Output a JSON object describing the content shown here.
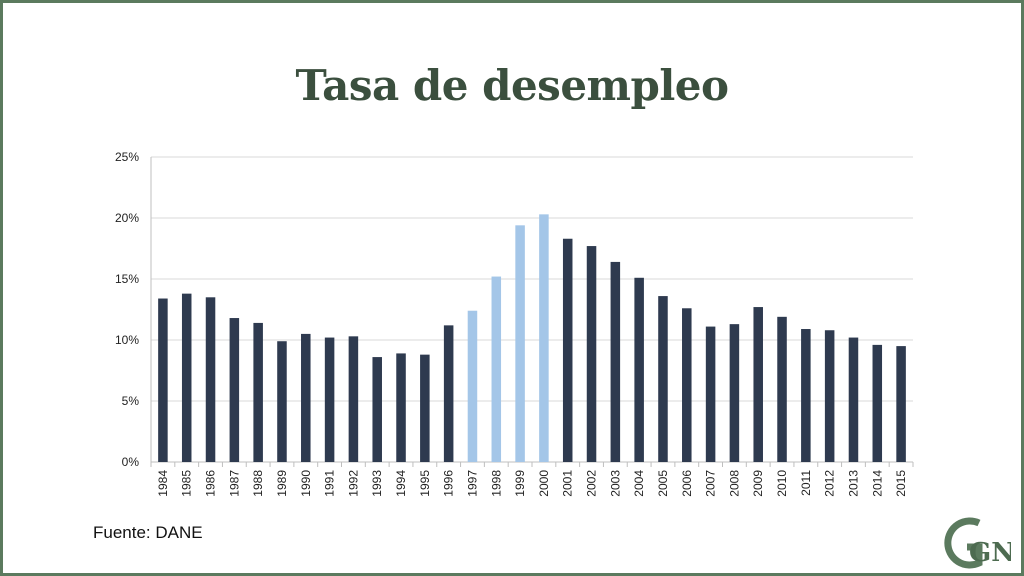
{
  "slide": {
    "title": "Tasa de desempleo",
    "source": "Fuente: DANE",
    "logo_text": "GN"
  },
  "colors": {
    "frame": "#5b7a5e",
    "title": "#3b4f3e",
    "bar_dark": "#2e3a4f",
    "bar_light": "#a4c6e8",
    "grid": "#d9d9d9"
  },
  "chart_data": {
    "type": "bar",
    "categories": [
      "1984",
      "1985",
      "1986",
      "1987",
      "1988",
      "1989",
      "1990",
      "1991",
      "1992",
      "1993",
      "1994",
      "1995",
      "1996",
      "1997",
      "1998",
      "1999",
      "2000",
      "2001",
      "2002",
      "2003",
      "2004",
      "2005",
      "2006",
      "2007",
      "2008",
      "2009",
      "2010",
      "2011",
      "2012",
      "2013",
      "2014",
      "2015"
    ],
    "values": [
      13.4,
      13.8,
      13.5,
      11.8,
      11.4,
      9.9,
      10.5,
      10.2,
      10.3,
      8.6,
      8.9,
      8.8,
      11.2,
      12.4,
      15.2,
      19.4,
      20.3,
      18.3,
      17.7,
      16.4,
      15.1,
      13.6,
      12.6,
      11.1,
      11.3,
      12.7,
      11.9,
      10.9,
      10.8,
      10.2,
      9.6,
      9.5
    ],
    "highlight": [
      false,
      false,
      false,
      false,
      false,
      false,
      false,
      false,
      false,
      false,
      false,
      false,
      false,
      true,
      true,
      true,
      true,
      false,
      false,
      false,
      false,
      false,
      false,
      false,
      false,
      false,
      false,
      false,
      false,
      false,
      false,
      false
    ],
    "yticks": [
      "0%",
      "5%",
      "10%",
      "15%",
      "20%",
      "25%"
    ],
    "ylim": [
      0,
      25
    ],
    "grid": true,
    "legend": "none"
  }
}
